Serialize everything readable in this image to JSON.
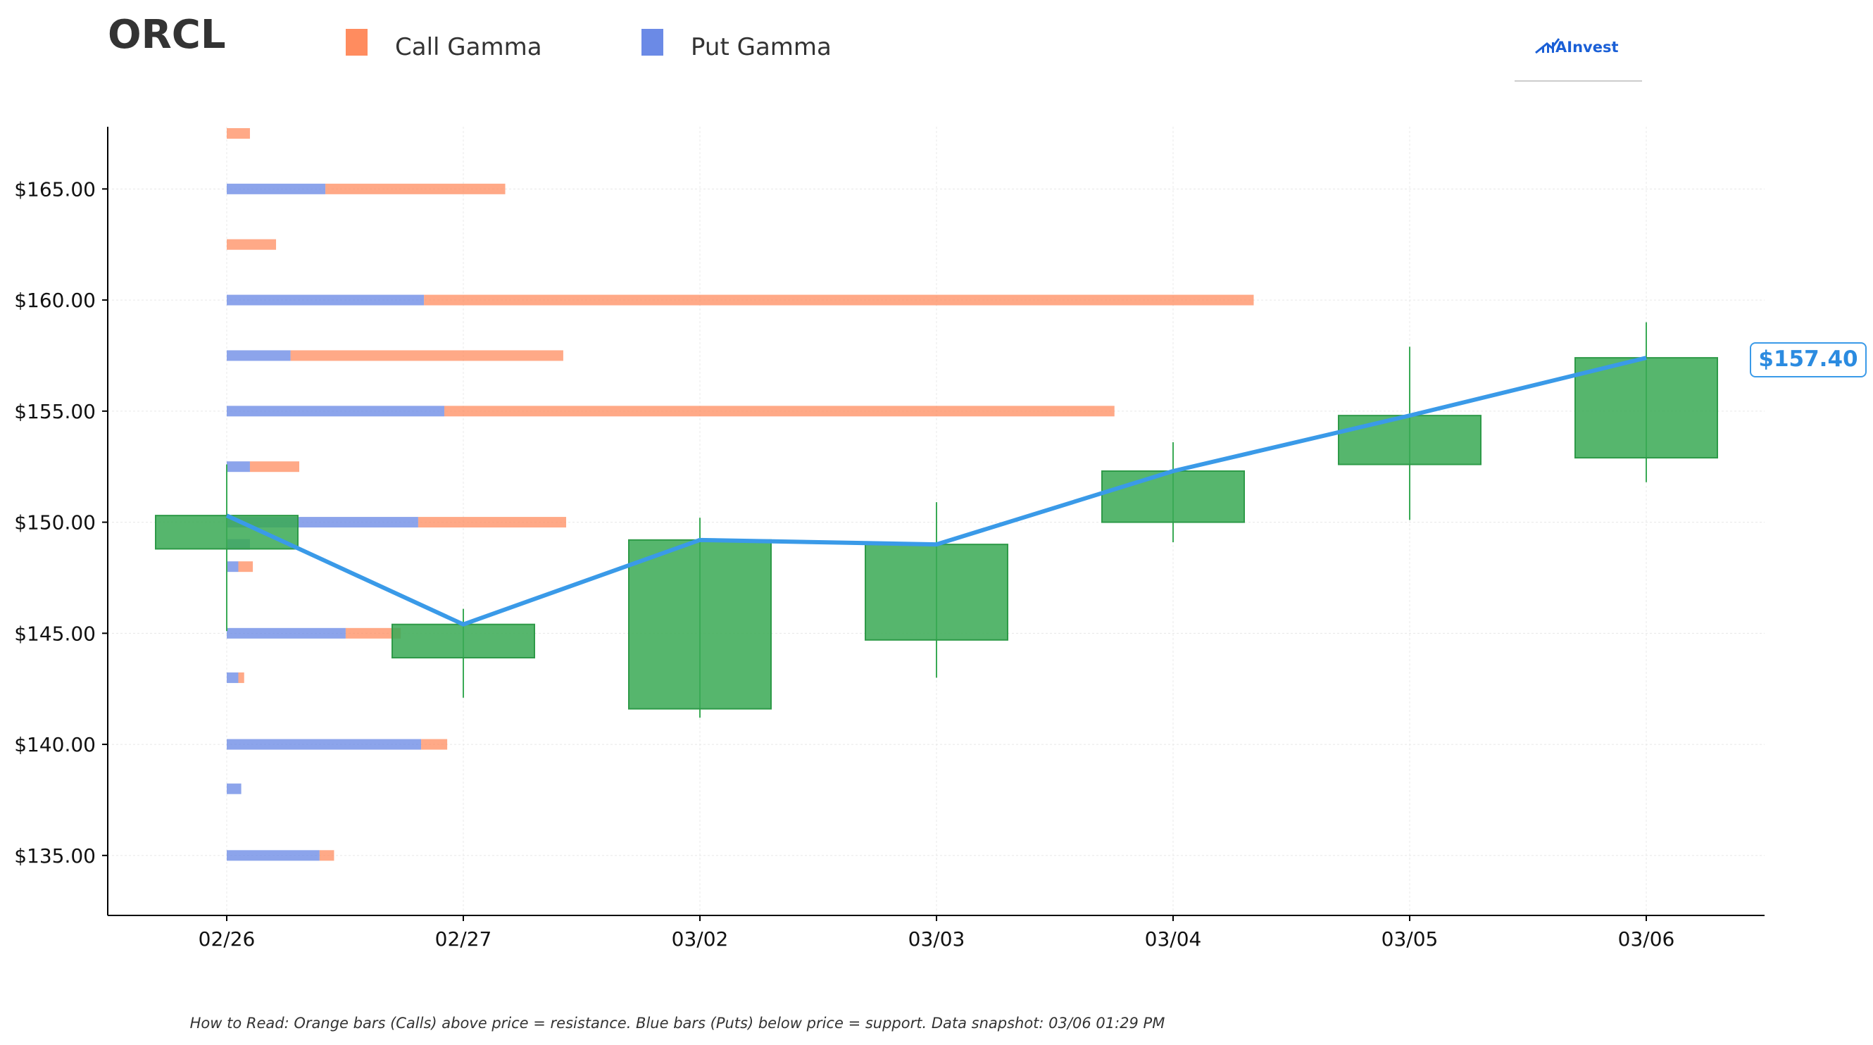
{
  "header": {
    "ticker": "ORCL",
    "logo_text": "AInvest"
  },
  "legend": [
    {
      "label": "Call Gamma",
      "color": "#ff8c5f"
    },
    {
      "label": "Put Gamma",
      "color": "#6b8ae6"
    }
  ],
  "footnote": "How to Read: Orange bars (Calls) above price = resistance. Blue bars (Puts) below price = support. Data snapshot: 03/06 01:29 PM",
  "price_tag": "$157.40",
  "colors": {
    "call": "#ff8c5f",
    "put": "#6b8ae6",
    "candle": "#3aaa55",
    "line": "#3a9ae8",
    "axis": "#000000",
    "grid": "#e8e8e8"
  },
  "chart_data": {
    "type": "candlestick",
    "xlabel": "",
    "ylabel": "",
    "grid": true,
    "legend_position": "top-left",
    "ylim": [
      132.3,
      167.8
    ],
    "y_ticks": [
      135,
      140,
      145,
      150,
      155,
      160,
      165
    ],
    "y_tick_labels": [
      "$135.00",
      "$140.00",
      "$145.00",
      "$150.00",
      "$155.00",
      "$160.00",
      "$165.00"
    ],
    "categories": [
      "02/26",
      "02/27",
      "03/02",
      "03/03",
      "03/04",
      "03/05",
      "03/06"
    ],
    "candles": [
      {
        "date": "02/26",
        "open": 148.8,
        "close": 150.3,
        "high": 152.6,
        "low": 145.1
      },
      {
        "date": "02/27",
        "open": 143.9,
        "close": 145.4,
        "high": 146.1,
        "low": 142.1
      },
      {
        "date": "03/02",
        "open": 141.6,
        "close": 149.2,
        "high": 150.2,
        "low": 141.2
      },
      {
        "date": "03/03",
        "open": 144.7,
        "close": 149.0,
        "high": 150.9,
        "low": 143.0
      },
      {
        "date": "03/04",
        "open": 150.0,
        "close": 152.3,
        "high": 153.6,
        "low": 149.1
      },
      {
        "date": "03/05",
        "open": 152.6,
        "close": 154.8,
        "high": 157.9,
        "low": 150.1
      },
      {
        "date": "03/06",
        "open": 152.9,
        "close": 157.4,
        "high": 159.0,
        "low": 151.8
      }
    ],
    "close_line": {
      "x": [
        "02/26",
        "02/27",
        "03/02",
        "03/03",
        "03/04",
        "03/05",
        "03/06"
      ],
      "y": [
        150.3,
        145.4,
        149.2,
        149.0,
        152.3,
        154.8,
        157.4
      ]
    },
    "gamma_strikes": [
      {
        "strike": 167.5,
        "put": 0.0,
        "call": 0.08
      },
      {
        "strike": 165.0,
        "put": 0.34,
        "call": 0.62
      },
      {
        "strike": 162.5,
        "put": 0.0,
        "call": 0.17
      },
      {
        "strike": 160.0,
        "put": 0.68,
        "call": 2.86
      },
      {
        "strike": 157.5,
        "put": 0.22,
        "call": 0.94
      },
      {
        "strike": 155.0,
        "put": 0.75,
        "call": 2.31
      },
      {
        "strike": 152.5,
        "put": 0.08,
        "call": 0.17
      },
      {
        "strike": 150.0,
        "put": 0.66,
        "call": 0.51
      },
      {
        "strike": 149.0,
        "put": 0.08,
        "call": 0.0
      },
      {
        "strike": 148.0,
        "put": 0.04,
        "call": 0.05
      },
      {
        "strike": 145.0,
        "put": 0.41,
        "call": 0.19
      },
      {
        "strike": 143.0,
        "put": 0.04,
        "call": 0.02
      },
      {
        "strike": 140.0,
        "put": 0.67,
        "call": 0.09
      },
      {
        "strike": 138.0,
        "put": 0.05,
        "call": 0.0
      },
      {
        "strike": 135.0,
        "put": 0.32,
        "call": 0.05
      }
    ]
  }
}
